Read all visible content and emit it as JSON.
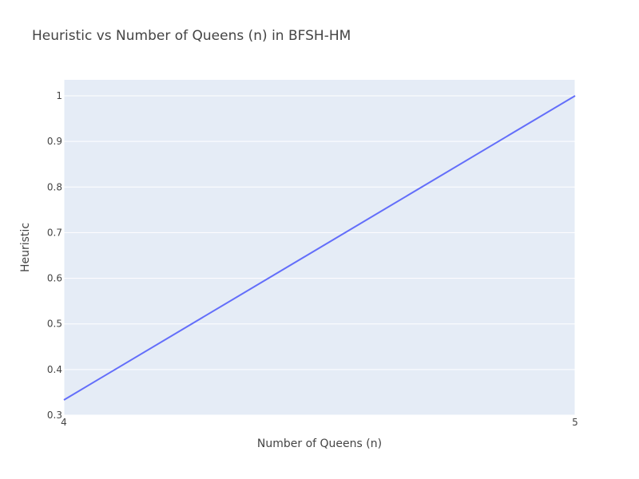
{
  "chart_data": {
    "type": "line",
    "title": "Heuristic vs Number of Queens (n) in BFSH-HM",
    "xlabel": "Number of Queens (n)",
    "ylabel": "Heuristic",
    "x": [
      4,
      5
    ],
    "series": [
      {
        "values": [
          0.3333,
          1.0
        ]
      }
    ],
    "xlim": [
      4,
      5
    ],
    "ylim": [
      0.3,
      1.035
    ],
    "xticks": [
      4,
      5
    ],
    "xtick_labels": [
      "4",
      "5"
    ],
    "yticks": [
      0.3,
      0.4,
      0.5,
      0.6,
      0.7,
      0.8,
      0.9,
      1
    ],
    "ytick_labels": [
      "0.3",
      "0.4",
      "0.5",
      "0.6",
      "0.7",
      "0.8",
      "0.9",
      "1"
    ],
    "grid": true,
    "legend": false,
    "colors": {
      "plot_background": "#e5ecf6",
      "line": "#636efa",
      "grid": "#ffffff",
      "text": "#444444"
    }
  }
}
